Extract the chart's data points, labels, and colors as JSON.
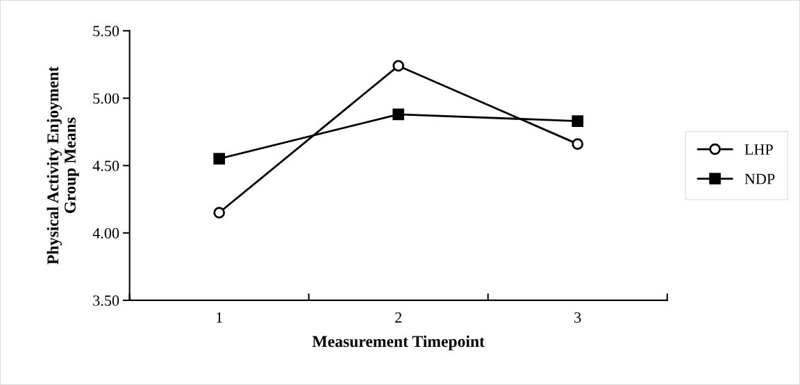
{
  "chart_data": {
    "type": "line",
    "xlabel": "Measurement Timepoint",
    "ylabel": "Physical Activity Enjoyment\nGroup Means",
    "categories": [
      "1",
      "2",
      "3"
    ],
    "series": [
      {
        "name": "LHP",
        "color": "#000000",
        "marker": "circle",
        "values": [
          4.15,
          5.24,
          4.66
        ]
      },
      {
        "name": "NDP",
        "color": "#000000",
        "marker": "square",
        "values": [
          4.55,
          4.88,
          4.83
        ]
      }
    ],
    "ylim": [
      3.5,
      5.5
    ],
    "yticks": [
      {
        "value": 3.5,
        "label": "3.50"
      },
      {
        "value": 4.0,
        "label": "4.00"
      },
      {
        "value": 4.5,
        "label": "4.50"
      },
      {
        "value": 5.0,
        "label": "5.00"
      },
      {
        "value": 5.5,
        "label": "5.50"
      }
    ],
    "grid": false,
    "legend": "right",
    "line_style": "solid"
  }
}
